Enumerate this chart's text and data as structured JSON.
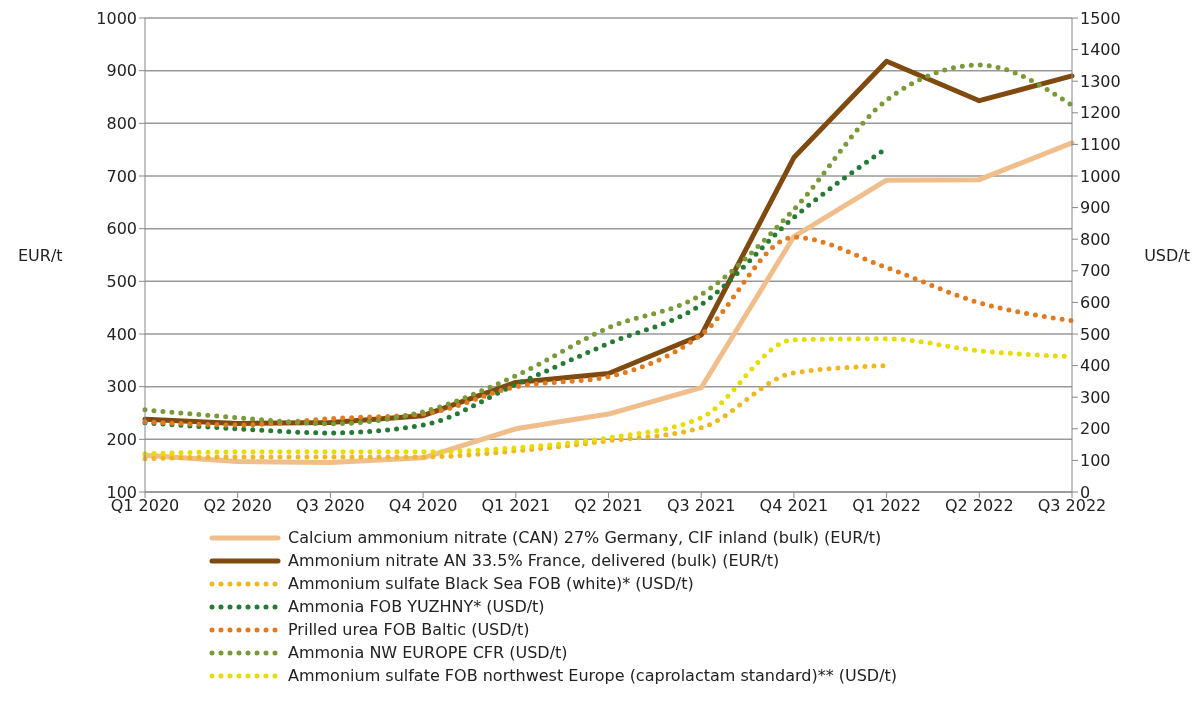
{
  "chart_data": {
    "type": "line",
    "categories": [
      "Q1 2020",
      "Q2 2020",
      "Q3 2020",
      "Q4 2020",
      "Q1 2021",
      "Q2 2021",
      "Q3 2021",
      "Q4 2021",
      "Q1 2022",
      "Q2 2022",
      "Q3 2022"
    ],
    "ylabel": "EUR/t",
    "y2label": "USD/t",
    "ylim": [
      100,
      1000
    ],
    "yticks": [
      100,
      200,
      300,
      400,
      500,
      600,
      700,
      800,
      900,
      1000
    ],
    "y2lim": [
      0,
      1500
    ],
    "y2ticks": [
      0,
      100,
      200,
      300,
      400,
      500,
      600,
      700,
      800,
      900,
      1000,
      1100,
      1200,
      1300,
      1400,
      1500
    ],
    "grid": "y",
    "legend": "bottom",
    "marker": "none",
    "series": [
      {
        "name": "Calcium ammonium nitrate (CAN) 27% Germany, CIF inland (bulk) (EUR/t)",
        "color": "#f0be8a",
        "line_style": "solid",
        "values": [
          170,
          158,
          156,
          165,
          220,
          248,
          298,
          585,
          692,
          693,
          763
        ]
      },
      {
        "name": "Ammonium nitrate AN 33.5% France, delivered (bulk) (EUR/t)",
        "color": "#7f4a10",
        "line_style": "solid",
        "values": [
          238,
          230,
          232,
          245,
          308,
          325,
          398,
          735,
          918,
          843,
          890
        ]
      },
      {
        "name": "Ammonium sulfate Black Sea FOB (white)* (USD/t)",
        "color": "#f0b820",
        "line_style": "dotted",
        "axis": "y2",
        "values": [
          105,
          111,
          111,
          111,
          130,
          162,
          203,
          377,
          400,
          null,
          null
        ]
      },
      {
        "name": "Ammonia FOB YUZHNY* (USD/t)",
        "color": "#267a36",
        "line_style": "dotted",
        "axis": "y2",
        "values": [
          219,
          200,
          187,
          212,
          340,
          470,
          593,
          869,
          1088,
          null,
          null
        ]
      },
      {
        "name": "Prilled urea FOB Baltic (USD/t)",
        "color": "#e07b20",
        "line_style": "dotted",
        "axis": "y2",
        "values": [
          222,
          212,
          232,
          247,
          333,
          365,
          498,
          806,
          710,
          599,
          542
        ]
      },
      {
        "name": "Ammonia NW EUROPE CFR (USD/t)",
        "color": "#7a9a3a",
        "line_style": "dotted",
        "axis": "y2",
        "values": [
          260,
          235,
          216,
          254,
          368,
          520,
          625,
          894,
          1240,
          1351,
          1224
        ]
      },
      {
        "name": "Ammonium sulfate FOB northwest Europe (caprolactam standard)** (USD/t)",
        "color": "#e6dc00",
        "line_style": "dotted",
        "axis": "y2",
        "values": [
          121,
          127,
          127,
          127,
          140,
          171,
          235,
          482,
          485,
          447,
          428
        ]
      }
    ]
  }
}
